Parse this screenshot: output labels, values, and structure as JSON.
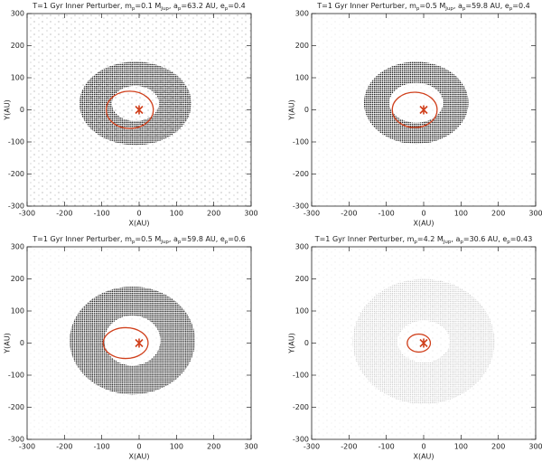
{
  "chart_data": [
    {
      "type": "scatter",
      "title": [
        {
          "text": "T=1 Gyr  Inner Perturber, m"
        },
        {
          "text": "p",
          "sub": true
        },
        {
          "text": "=0.1 M"
        },
        {
          "text": "Jup",
          "sub": true
        },
        {
          "text": ", a"
        },
        {
          "text": "p",
          "sub": true
        },
        {
          "text": "=63.2 AU, e"
        },
        {
          "text": "p",
          "sub": true
        },
        {
          "text": "=0.4"
        }
      ],
      "x_label": "X(AU)",
      "y_label": "Y(AU)",
      "xlim": [
        -300,
        300
      ],
      "ylim": [
        -300,
        300
      ],
      "xticks": [
        -300,
        -200,
        -100,
        0,
        100,
        200,
        300
      ],
      "yticks": [
        -300,
        -200,
        -100,
        0,
        100,
        200,
        300
      ],
      "disk": {
        "center": [
          -10,
          20
        ],
        "rx_outer": 150,
        "ry_outer": 130,
        "rx_inner": 63,
        "ry_inner": 55,
        "color": "#111111"
      },
      "orbit": {
        "center": [
          -25,
          0
        ],
        "rx": 63,
        "ry": 58,
        "color": "#d0401c"
      },
      "star": [
        0,
        0
      ],
      "star_color": "#d0401c"
    },
    {
      "type": "scatter",
      "title": [
        {
          "text": "T=1 Gyr  Inner Perturber, m"
        },
        {
          "text": "p",
          "sub": true
        },
        {
          "text": "=0.5 M"
        },
        {
          "text": "Jup",
          "sub": true
        },
        {
          "text": ", a"
        },
        {
          "text": "p",
          "sub": true
        },
        {
          "text": "=59.8 AU, e"
        },
        {
          "text": "p",
          "sub": true
        },
        {
          "text": "=0.4"
        }
      ],
      "x_label": "X(AU)",
      "y_label": "Y(AU)",
      "xlim": [
        -300,
        300
      ],
      "ylim": [
        -300,
        300
      ],
      "xticks": [
        -300,
        -200,
        -100,
        0,
        100,
        200,
        300
      ],
      "yticks": [
        -300,
        -200,
        -100,
        0,
        100,
        200,
        300
      ],
      "disk": {
        "center": [
          -20,
          22
        ],
        "rx_outer": 140,
        "ry_outer": 128,
        "rx_inner": 72,
        "ry_inner": 62,
        "color": "#111111"
      },
      "orbit": {
        "center": [
          -24,
          0
        ],
        "rx": 60,
        "ry": 55,
        "color": "#d0401c"
      },
      "star": [
        0,
        0
      ],
      "star_color": "#d0401c"
    },
    {
      "type": "scatter",
      "title": [
        {
          "text": "T=1 Gyr  Inner Perturber, m"
        },
        {
          "text": "p",
          "sub": true
        },
        {
          "text": "=0.5 M"
        },
        {
          "text": "Jup",
          "sub": true
        },
        {
          "text": ", a"
        },
        {
          "text": "p",
          "sub": true
        },
        {
          "text": "=59.8 AU, e"
        },
        {
          "text": "p",
          "sub": true
        },
        {
          "text": "=0.6"
        }
      ],
      "x_label": "X(AU)",
      "y_label": "Y(AU)",
      "xlim": [
        -300,
        300
      ],
      "ylim": [
        -300,
        300
      ],
      "xticks": [
        -300,
        -200,
        -100,
        0,
        100,
        200,
        300
      ],
      "yticks": [
        -300,
        -200,
        -100,
        0,
        100,
        200,
        300
      ],
      "disk": {
        "center": [
          -18,
          8
        ],
        "rx_outer": 168,
        "ry_outer": 168,
        "rx_inner": 75,
        "ry_inner": 78,
        "color": "#111111"
      },
      "orbit": {
        "center": [
          -36,
          0
        ],
        "rx": 60,
        "ry": 48,
        "color": "#d0401c"
      },
      "star": [
        0,
        0
      ],
      "star_color": "#d0401c"
    },
    {
      "type": "scatter",
      "title": [
        {
          "text": "T=1 Gyr  Inner Perturber, m"
        },
        {
          "text": "p",
          "sub": true
        },
        {
          "text": "=4.2 M"
        },
        {
          "text": "Jup",
          "sub": true
        },
        {
          "text": ", a"
        },
        {
          "text": "p",
          "sub": true
        },
        {
          "text": "=30.6 AU, e"
        },
        {
          "text": "p",
          "sub": true
        },
        {
          "text": "=0.43"
        }
      ],
      "x_label": "X(AU)",
      "y_label": "Y(AU)",
      "xlim": [
        -300,
        300
      ],
      "ylim": [
        -300,
        300
      ],
      "xticks": [
        -300,
        -200,
        -100,
        0,
        100,
        200,
        300
      ],
      "yticks": [
        -300,
        -200,
        -100,
        0,
        100,
        200,
        300
      ],
      "disk": {
        "center": [
          0,
          5
        ],
        "rx_outer": 190,
        "ry_outer": 195,
        "rx_inner": 70,
        "ry_inner": 65,
        "color": "#8a8a8a"
      },
      "orbit": {
        "center": [
          -13,
          0
        ],
        "rx": 31,
        "ry": 28,
        "color": "#d0401c"
      },
      "star": [
        0,
        0
      ],
      "star_color": "#d0401c"
    }
  ]
}
